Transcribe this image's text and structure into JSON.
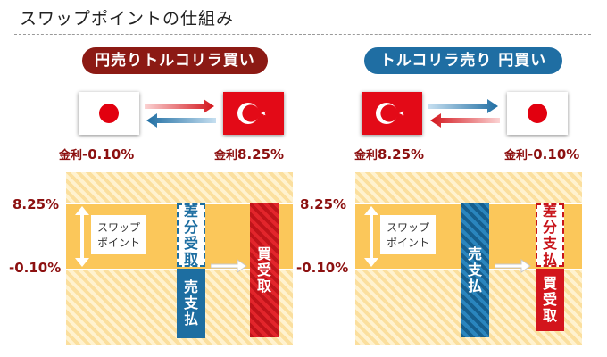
{
  "title": "スワップポイントの仕組み",
  "colors": {
    "red_dark": "#8c1a14",
    "blue": "#1f6ea3",
    "red": "#d3151c",
    "gold": "#fbc75a"
  },
  "left": {
    "pill": "円売りトルコリラ買い",
    "flag_left": "japan-flag",
    "flag_right": "turkey-flag",
    "rate_left_key": "金利",
    "rate_left_value": "-0.10%",
    "rate_right_key": "金利",
    "rate_right_value": "8.25%",
    "axis_top": "8.25%",
    "axis_bottom": "-0.10%",
    "swap": "スワップ\nポイント",
    "box1": "差分受取",
    "box2": "売支払",
    "box3": "買受取"
  },
  "right": {
    "pill": "トルコリラ売り 円買い",
    "flag_left": "turkey-flag",
    "flag_right": "japan-flag",
    "rate_left_key": "金利",
    "rate_left_value": "8.25%",
    "rate_right_key": "金利",
    "rate_right_value": "-0.10%",
    "axis_top": "8.25%",
    "axis_bottom": "-0.10%",
    "swap": "スワップ\nポイント",
    "box1": "売支払",
    "box2": "差分支払",
    "box3": "買受取"
  }
}
